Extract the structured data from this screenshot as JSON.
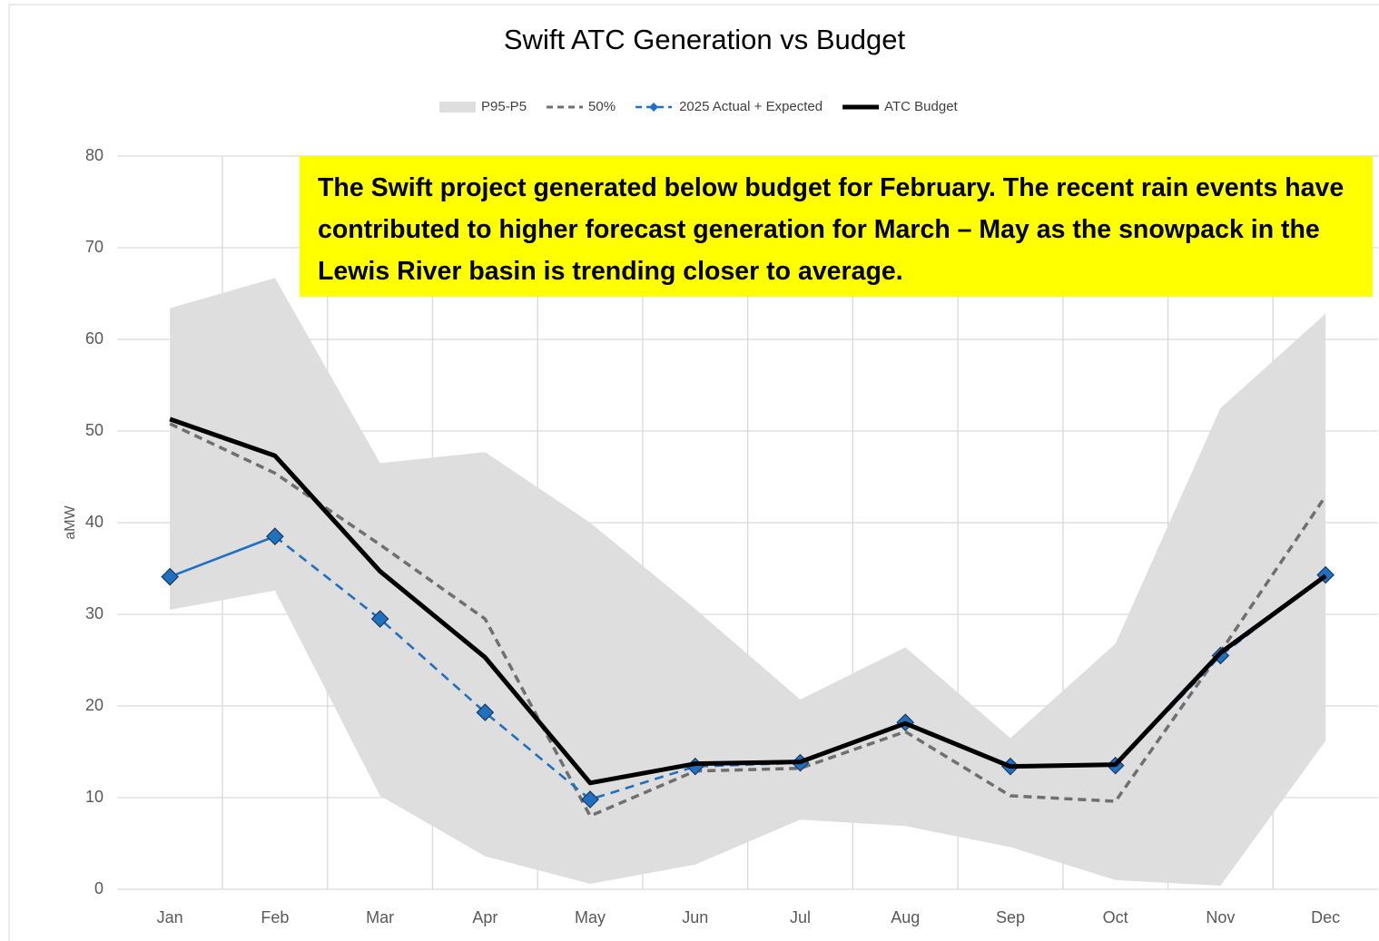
{
  "chart_data": {
    "type": "line",
    "title": "Swift ATC Generation vs Budget",
    "y_label": "aMW",
    "annotation": "The Swift project generated below budget for February. The recent rain events have contributed to higher forecast generation for March – May as the snowpack in the Lewis River basin is trending closer to average.",
    "categories": [
      "Jan",
      "Feb",
      "Mar",
      "Apr",
      "May",
      "Jun",
      "Jul",
      "Aug",
      "Sep",
      "Oct",
      "Nov",
      "Dec"
    ],
    "ylim": [
      0,
      80
    ],
    "yticks": [
      0,
      10,
      20,
      30,
      40,
      50,
      60,
      70,
      80
    ],
    "grid": true,
    "legend": "top",
    "series": [
      {
        "name": "P95-P5",
        "type": "band",
        "color": "#dedede",
        "high": [
          63.4,
          66.7,
          46.5,
          47.7,
          40.0,
          30.6,
          20.7,
          26.4,
          16.5,
          26.8,
          52.5,
          62.8
        ],
        "low": [
          30.5,
          32.6,
          10.2,
          3.6,
          0.6,
          2.7,
          7.6,
          6.9,
          4.6,
          1.0,
          0.4,
          16.2
        ]
      },
      {
        "name": "50%",
        "color": "#6f6f6f",
        "dashed": true,
        "values": [
          50.8,
          45.4,
          37.6,
          29.5,
          8.0,
          12.9,
          13.2,
          17.2,
          10.2,
          9.6,
          25.9,
          42.9
        ]
      },
      {
        "name": "2025 Actual + Expected",
        "color": "#1f70c1",
        "marker": "diamond",
        "dashed_from": "Feb",
        "values": [
          34.1,
          38.5,
          29.5,
          19.3,
          9.8,
          13.4,
          13.8,
          18.2,
          13.4,
          13.5,
          25.5,
          34.3
        ]
      },
      {
        "name": "ATC Budget",
        "color": "#000000",
        "values": [
          51.3,
          47.3,
          34.7,
          25.3,
          11.6,
          13.7,
          13.9,
          18.1,
          13.4,
          13.6,
          25.8,
          34.2
        ]
      }
    ]
  }
}
